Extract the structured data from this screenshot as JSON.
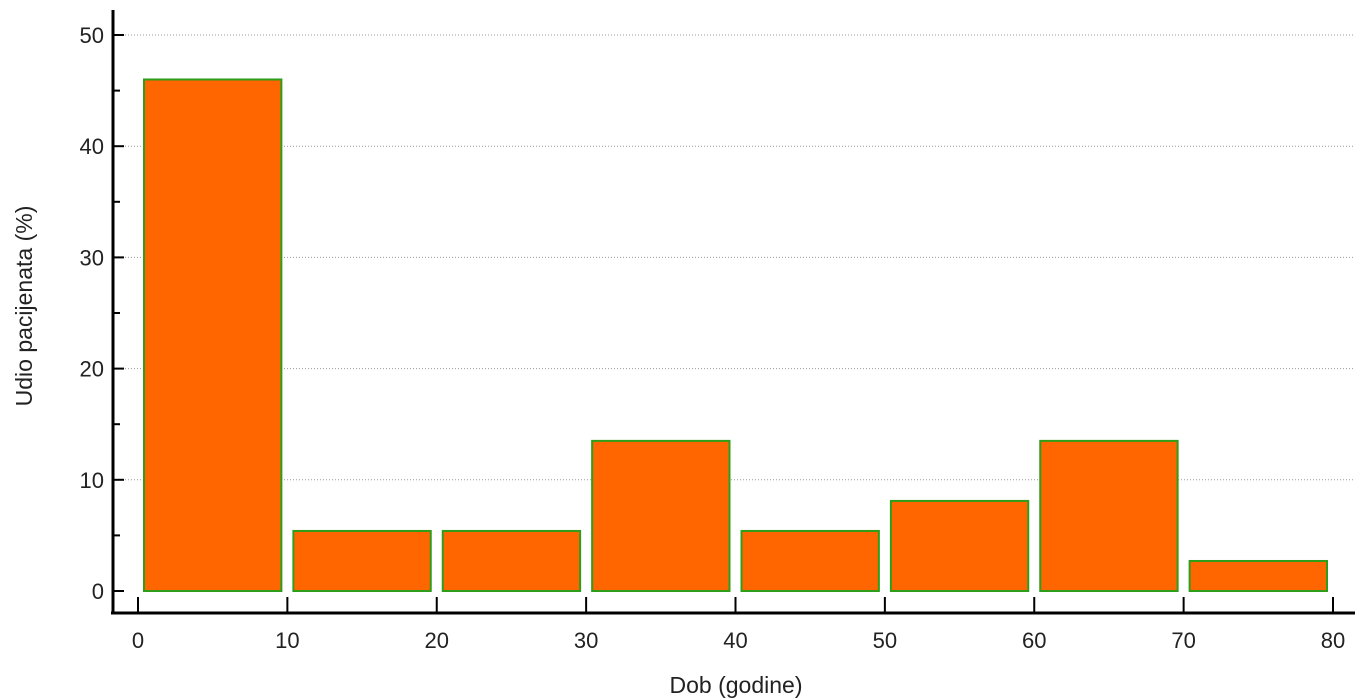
{
  "chart_data": {
    "type": "bar",
    "title": "",
    "xlabel": "Dob (godine)",
    "ylabel": "Udio pacijenata (%)",
    "bins": [
      {
        "start": 0,
        "end": 10,
        "value": 46
      },
      {
        "start": 10,
        "end": 20,
        "value": 5.4
      },
      {
        "start": 20,
        "end": 30,
        "value": 5.4
      },
      {
        "start": 30,
        "end": 40,
        "value": 13.5
      },
      {
        "start": 40,
        "end": 50,
        "value": 5.4
      },
      {
        "start": 50,
        "end": 60,
        "value": 8.1
      },
      {
        "start": 60,
        "end": 70,
        "value": 13.5
      },
      {
        "start": 70,
        "end": 80,
        "value": 2.7
      }
    ],
    "xlim": [
      0,
      80
    ],
    "ylim": [
      0,
      50
    ],
    "xticks": [
      "0",
      "10",
      "20",
      "30",
      "40",
      "50",
      "60",
      "70",
      "80"
    ],
    "yticks": [
      "0",
      "10",
      "20",
      "30",
      "40",
      "50"
    ],
    "grid": "horizontal",
    "colors": {
      "bar_fill": "#FF6600",
      "bar_edge": "#2E9E1A",
      "grid": "#9a9a9a",
      "axis": "#000000"
    }
  }
}
